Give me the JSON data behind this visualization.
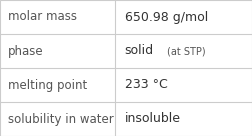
{
  "rows": [
    {
      "label": "molar mass",
      "value": "650.98 g/mol",
      "suffix": "",
      "suffix_small": false
    },
    {
      "label": "phase",
      "value": "solid",
      "suffix": "  (at STP)",
      "suffix_small": true
    },
    {
      "label": "melting point",
      "value": "233 °C",
      "suffix": "",
      "suffix_small": false
    },
    {
      "label": "solubility in water",
      "value": "insoluble",
      "suffix": "",
      "suffix_small": false
    }
  ],
  "col_split": 0.455,
  "background_color": "#ffffff",
  "border_color": "#cccccc",
  "label_fontsize": 8.5,
  "value_fontsize": 9.0,
  "small_fontsize": 7.0,
  "text_color": "#333333",
  "label_color": "#555555"
}
